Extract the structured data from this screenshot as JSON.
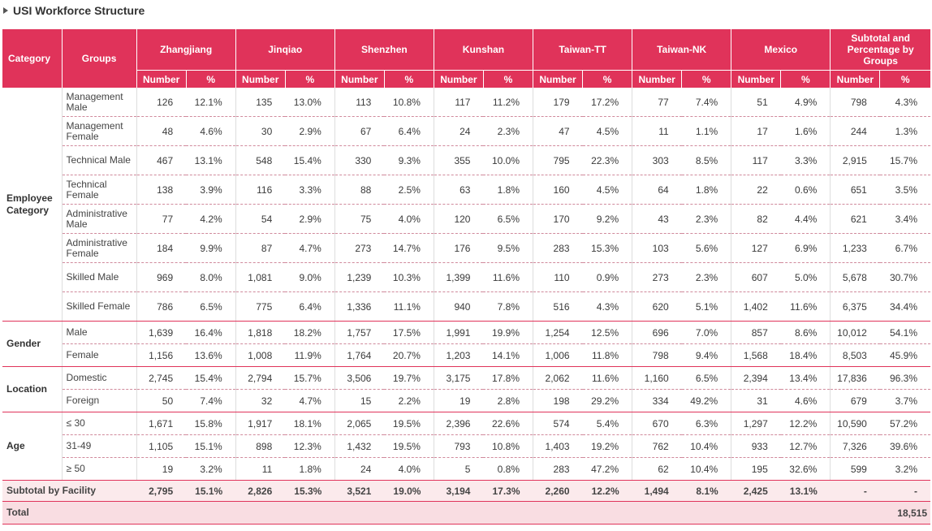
{
  "title": "USI Workforce Structure",
  "header": {
    "category": "Category",
    "groups": "Groups",
    "sites": [
      "Zhangjiang",
      "Jinqiao",
      "Shenzhen",
      "Kunshan",
      "Taiwan-TT",
      "Taiwan-NK",
      "Mexico"
    ],
    "subtotal_header": "Subtotal and Percentage by Groups",
    "number": "Number",
    "percent": "%"
  },
  "sections": [
    {
      "category": "Employee Category",
      "rows": [
        {
          "group": "Management Male",
          "cells": [
            "126",
            "12.1%",
            "135",
            "13.0%",
            "113",
            "10.8%",
            "117",
            "11.2%",
            "179",
            "17.2%",
            "77",
            "7.4%",
            "51",
            "4.9%",
            "798",
            "4.3%"
          ]
        },
        {
          "group": "Management Female",
          "cells": [
            "48",
            "4.6%",
            "30",
            "2.9%",
            "67",
            "6.4%",
            "24",
            "2.3%",
            "47",
            "4.5%",
            "11",
            "1.1%",
            "17",
            "1.6%",
            "244",
            "1.3%"
          ]
        },
        {
          "group": "Technical Male",
          "cells": [
            "467",
            "13.1%",
            "548",
            "15.4%",
            "330",
            "9.3%",
            "355",
            "10.0%",
            "795",
            "22.3%",
            "303",
            "8.5%",
            "117",
            "3.3%",
            "2,915",
            "15.7%"
          ]
        },
        {
          "group": "Technical Female",
          "cells": [
            "138",
            "3.9%",
            "116",
            "3.3%",
            "88",
            "2.5%",
            "63",
            "1.8%",
            "160",
            "4.5%",
            "64",
            "1.8%",
            "22",
            "0.6%",
            "651",
            "3.5%"
          ]
        },
        {
          "group": "Administrative Male",
          "cells": [
            "77",
            "4.2%",
            "54",
            "2.9%",
            "75",
            "4.0%",
            "120",
            "6.5%",
            "170",
            "9.2%",
            "43",
            "2.3%",
            "82",
            "4.4%",
            "621",
            "3.4%"
          ]
        },
        {
          "group": "Administrative Female",
          "cells": [
            "184",
            "9.9%",
            "87",
            "4.7%",
            "273",
            "14.7%",
            "176",
            "9.5%",
            "283",
            "15.3%",
            "103",
            "5.6%",
            "127",
            "6.9%",
            "1,233",
            "6.7%"
          ]
        },
        {
          "group": "Skilled Male",
          "cells": [
            "969",
            "8.0%",
            "1,081",
            "9.0%",
            "1,239",
            "10.3%",
            "1,399",
            "11.6%",
            "110",
            "0.9%",
            "273",
            "2.3%",
            "607",
            "5.0%",
            "5,678",
            "30.7%"
          ]
        },
        {
          "group": "Skilled Female",
          "cells": [
            "786",
            "6.5%",
            "775",
            "6.4%",
            "1,336",
            "11.1%",
            "940",
            "7.8%",
            "516",
            "4.3%",
            "620",
            "5.1%",
            "1,402",
            "11.6%",
            "6,375",
            "34.4%"
          ]
        }
      ]
    },
    {
      "category": "Gender",
      "rows": [
        {
          "group": "Male",
          "cells": [
            "1,639",
            "16.4%",
            "1,818",
            "18.2%",
            "1,757",
            "17.5%",
            "1,991",
            "19.9%",
            "1,254",
            "12.5%",
            "696",
            "7.0%",
            "857",
            "8.6%",
            "10,012",
            "54.1%"
          ]
        },
        {
          "group": "Female",
          "cells": [
            "1,156",
            "13.6%",
            "1,008",
            "11.9%",
            "1,764",
            "20.7%",
            "1,203",
            "14.1%",
            "1,006",
            "11.8%",
            "798",
            "9.4%",
            "1,568",
            "18.4%",
            "8,503",
            "45.9%"
          ]
        }
      ]
    },
    {
      "category": "Location",
      "rows": [
        {
          "group": "Domestic",
          "cells": [
            "2,745",
            "15.4%",
            "2,794",
            "15.7%",
            "3,506",
            "19.7%",
            "3,175",
            "17.8%",
            "2,062",
            "11.6%",
            "1,160",
            "6.5%",
            "2,394",
            "13.4%",
            "17,836",
            "96.3%"
          ]
        },
        {
          "group": "Foreign",
          "cells": [
            "50",
            "7.4%",
            "32",
            "4.7%",
            "15",
            "2.2%",
            "19",
            "2.8%",
            "198",
            "29.2%",
            "334",
            "49.2%",
            "31",
            "4.6%",
            "679",
            "3.7%"
          ]
        }
      ]
    },
    {
      "category": "Age",
      "rows": [
        {
          "group": "≤ 30",
          "cells": [
            "1,671",
            "15.8%",
            "1,917",
            "18.1%",
            "2,065",
            "19.5%",
            "2,396",
            "22.6%",
            "574",
            "5.4%",
            "670",
            "6.3%",
            "1,297",
            "12.2%",
            "10,590",
            "57.2%"
          ]
        },
        {
          "group": "31-49",
          "cells": [
            "1,105",
            "15.1%",
            "898",
            "12.3%",
            "1,432",
            "19.5%",
            "793",
            "10.8%",
            "1,403",
            "19.2%",
            "762",
            "10.4%",
            "933",
            "12.7%",
            "7,326",
            "39.6%"
          ]
        },
        {
          "group": "≥ 50",
          "cells": [
            "19",
            "3.2%",
            "11",
            "1.8%",
            "24",
            "4.0%",
            "5",
            "0.8%",
            "283",
            "47.2%",
            "62",
            "10.4%",
            "195",
            "32.6%",
            "599",
            "3.2%"
          ]
        }
      ]
    }
  ],
  "subtotal": {
    "label": "Subtotal by Facility",
    "cells": [
      "2,795",
      "15.1%",
      "2,826",
      "15.3%",
      "3,521",
      "19.0%",
      "3,194",
      "17.3%",
      "2,260",
      "12.2%",
      "1,494",
      "8.1%",
      "2,425",
      "13.1%",
      "-",
      "-"
    ]
  },
  "total": {
    "label": "Total",
    "value": "18,515"
  }
}
